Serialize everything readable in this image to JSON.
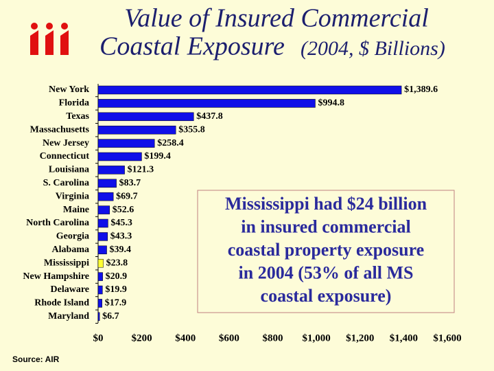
{
  "chart_data": {
    "type": "hbar",
    "title": [
      "Value of Insured Commercial",
      "Coastal Exposure"
    ],
    "subtitle": "(2004, $ Billions)",
    "categories": [
      "New York",
      "Florida",
      "Texas",
      "Massachusetts",
      "New Jersey",
      "Connecticut",
      "Louisiana",
      "S. Carolina",
      "Virginia",
      "Maine",
      "North Carolina",
      "Georgia",
      "Alabama",
      "Mississippi",
      "New Hampshire",
      "Delaware",
      "Rhode Island",
      "Maryland"
    ],
    "values": [
      1389.6,
      994.8,
      437.8,
      355.8,
      258.4,
      199.4,
      121.3,
      83.7,
      69.7,
      52.6,
      45.3,
      43.3,
      39.4,
      23.8,
      20.9,
      19.9,
      17.9,
      6.7
    ],
    "value_labels": [
      "$1,389.6",
      "$994.8",
      "$437.8",
      "$355.8",
      "$258.4",
      "$199.4",
      "$121.3",
      "$83.7",
      "$69.7",
      "$52.6",
      "$45.3",
      "$43.3",
      "$39.4",
      "$23.8",
      "$20.9",
      "$19.9",
      "$17.9",
      "$6.7"
    ],
    "colors": [
      "#1010e8",
      "#1010e8",
      "#1010e8",
      "#1010e8",
      "#1010e8",
      "#1010e8",
      "#1010e8",
      "#1010e8",
      "#1010e8",
      "#1010e8",
      "#1010e8",
      "#1010e8",
      "#1010e8",
      "#ffff33",
      "#1010e8",
      "#1010e8",
      "#1010e8",
      "#1010e8"
    ],
    "xlim": [
      0,
      1600
    ],
    "xticks": [
      {
        "value": 0,
        "label": "$0"
      },
      {
        "value": 200,
        "label": "$200"
      },
      {
        "value": 400,
        "label": "$400"
      },
      {
        "value": 600,
        "label": "$600"
      },
      {
        "value": 800,
        "label": "$800"
      },
      {
        "value": 1000,
        "label": "$1,000"
      },
      {
        "value": 1200,
        "label": "$1,200"
      },
      {
        "value": 1400,
        "label": "$1,400"
      },
      {
        "value": 1600,
        "label": "$1,600"
      }
    ],
    "annotation": [
      "Mississippi had $24 billion",
      "in insured commercial",
      "coastal property exposure",
      "in 2004 (53% of all MS",
      "coastal exposure)"
    ],
    "source": "Source: AIR"
  }
}
